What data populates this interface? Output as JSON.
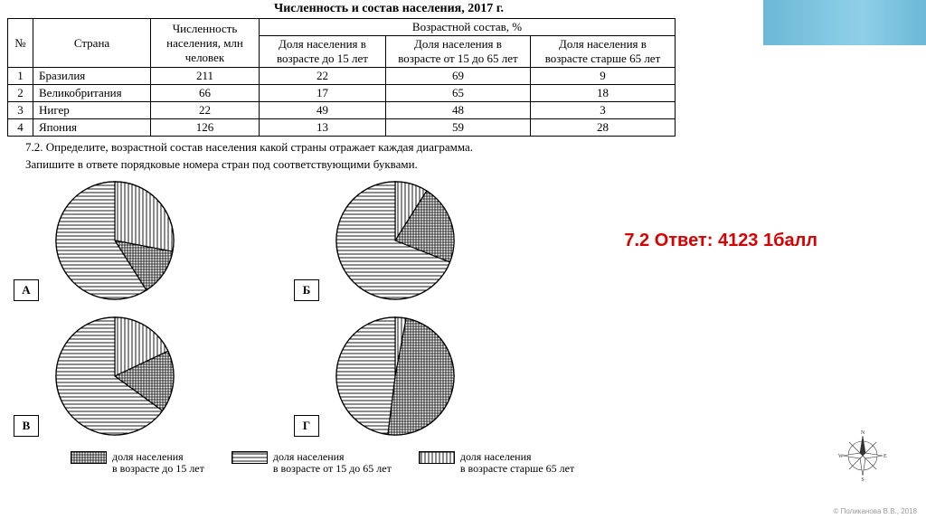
{
  "title": "Численность и состав населения, 2017 г.",
  "decor_color": "#6bb8d6",
  "table": {
    "header": {
      "num": "№",
      "country": "Страна",
      "pop": "Численность населения, млн человек",
      "age_group": "Возрастной состав, %",
      "under15": "Доля населения в возрасте до 15 лет",
      "mid": "Доля населения в возрасте от 15 до 65 лет",
      "over65": "Доля населения в возрасте старше 65 лет"
    },
    "rows": [
      {
        "n": "1",
        "country": "Бразилия",
        "pop": "211",
        "u15": "22",
        "mid": "69",
        "o65": "9"
      },
      {
        "n": "2",
        "country": "Великобритания",
        "pop": "66",
        "u15": "17",
        "mid": "65",
        "o65": "18"
      },
      {
        "n": "3",
        "country": "Нигер",
        "pop": "22",
        "u15": "49",
        "mid": "48",
        "o65": "3"
      },
      {
        "n": "4",
        "country": "Япония",
        "pop": "126",
        "u15": "13",
        "mid": "59",
        "o65": "28"
      }
    ],
    "col_widths": {
      "num": 28,
      "country": 130,
      "pop": 120,
      "u15": 140,
      "mid": 160,
      "o65": 160
    }
  },
  "task": {
    "line1": "7.2. Определите, возрастной состав населения какой страны отражает каждая диаграмма.",
    "line2": "Запишите в ответе порядковые номера стран под соответствующими буквами."
  },
  "answer_text": "7.2 Ответ: 4123 1балл",
  "charts": [
    {
      "letter": "А",
      "u15": 13,
      "mid": 59,
      "o65": 28,
      "radius": 65
    },
    {
      "letter": "Б",
      "u15": 22,
      "mid": 69,
      "o65": 9,
      "radius": 65
    },
    {
      "letter": "В",
      "u15": 17,
      "mid": 65,
      "o65": 18,
      "radius": 65
    },
    {
      "letter": "Г",
      "u15": 49,
      "mid": 48,
      "o65": 3,
      "radius": 65
    }
  ],
  "legend": [
    {
      "pattern": "cross",
      "text_l1": "доля населения",
      "text_l2": "в возрасте до 15 лет"
    },
    {
      "pattern": "horiz",
      "text_l1": "доля населения",
      "text_l2": "в возрасте от 15 до 65 лет"
    },
    {
      "pattern": "vert",
      "text_l1": "доля населения",
      "text_l2": "в возрасте старше 65 лет"
    }
  ],
  "credit": "© Поликанова В.В., 2018",
  "patterns": {
    "cross": {
      "type": "crosshatch",
      "stroke": "#000",
      "bg": "#fff"
    },
    "horiz": {
      "type": "horiz",
      "stroke": "#000",
      "bg": "#fff"
    },
    "vert": {
      "type": "vert",
      "stroke": "#000",
      "bg": "#fff"
    }
  }
}
